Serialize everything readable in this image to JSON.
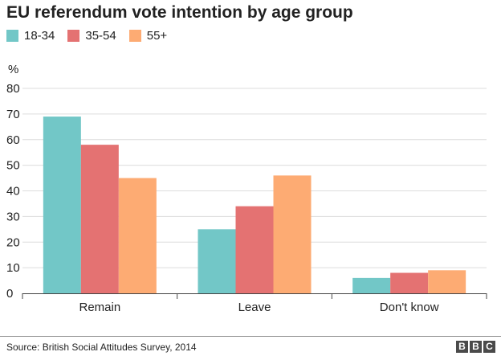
{
  "chart_data": {
    "type": "bar",
    "title": "EU referendum vote intention by age group",
    "ylabel": "%",
    "xlabel": "",
    "ylim": [
      0,
      80
    ],
    "yticks": [
      0,
      10,
      20,
      30,
      40,
      50,
      60,
      70,
      80
    ],
    "grid": true,
    "legend_position": "top-left",
    "categories": [
      "Remain",
      "Leave",
      "Don't know"
    ],
    "series": [
      {
        "name": "18-34",
        "color": "#72c7c7",
        "values": [
          69,
          25,
          6
        ]
      },
      {
        "name": "35-54",
        "color": "#e47272",
        "values": [
          58,
          34,
          8
        ]
      },
      {
        "name": "55+",
        "color": "#fdab73",
        "values": [
          45,
          46,
          9
        ]
      }
    ]
  },
  "footer": {
    "source": "Source: British Social Attitudes Survey, 2014",
    "logo_letters": [
      "B",
      "B",
      "C"
    ]
  }
}
